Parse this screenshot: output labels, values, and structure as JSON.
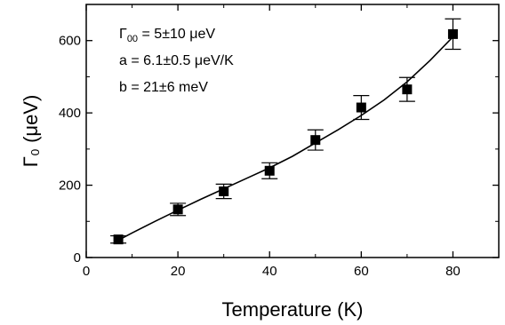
{
  "chart_data": {
    "type": "scatter",
    "xlabel": "Temperature (K)",
    "ylabel": "Γ₀ (μeV)",
    "xlim": [
      0,
      90
    ],
    "ylim": [
      0,
      700
    ],
    "x_ticks": [
      0,
      20,
      40,
      60,
      80
    ],
    "y_ticks": [
      0,
      200,
      400,
      600
    ],
    "x_tick_labels": [
      "0",
      "20",
      "40",
      "60",
      "80"
    ],
    "y_tick_labels": [
      "0",
      "200",
      "400",
      "600"
    ],
    "grid": false,
    "points": [
      {
        "x": 7,
        "y": 50,
        "err": 10
      },
      {
        "x": 20,
        "y": 133,
        "err": 17
      },
      {
        "x": 30,
        "y": 183,
        "err": 20
      },
      {
        "x": 40,
        "y": 240,
        "err": 22
      },
      {
        "x": 50,
        "y": 325,
        "err": 28
      },
      {
        "x": 60,
        "y": 415,
        "err": 33
      },
      {
        "x": 70,
        "y": 465,
        "err": 33
      },
      {
        "x": 80,
        "y": 618,
        "err": 42
      }
    ],
    "fit_line": {
      "x": [
        7,
        10,
        15,
        20,
        25,
        30,
        35,
        40,
        45,
        50,
        55,
        60,
        65,
        70,
        75,
        80
      ],
      "y": [
        48,
        68,
        100,
        131,
        161,
        190,
        219,
        248,
        280,
        317,
        354,
        393,
        436,
        486,
        545,
        610
      ]
    },
    "annotations": [
      {
        "symbol": "Γ",
        "subscript": "00",
        "text": " = 5±10 μeV"
      },
      {
        "text": "a = 6.1±0.5 μeV/K"
      },
      {
        "text": "b = 21±6 meV"
      }
    ]
  }
}
